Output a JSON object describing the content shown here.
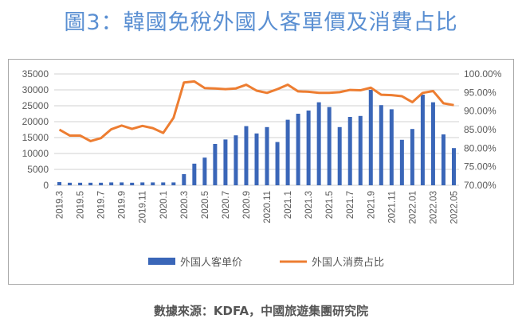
{
  "title": "圖3：韓國免稅外國人客單價及消費占比",
  "source": "數據來源：KDFA，中國旅遊集團研究院",
  "chart_data": {
    "type": "bar+line",
    "title": "",
    "categories": [
      "2019.3",
      "2019.4",
      "2019.5",
      "2019.6",
      "2019.7",
      "2019.8",
      "2019.9",
      "2019.10",
      "2019.11",
      "2019.12",
      "2020.1",
      "2020.2",
      "2020.3",
      "2020.4",
      "2020.5",
      "2020.6",
      "2020.7",
      "2020.8",
      "2020.9",
      "2020.10",
      "2020.11",
      "2020.12",
      "2021.1",
      "2021.2",
      "2021.3",
      "2021.4",
      "2021.5",
      "2021.6",
      "2021.7",
      "2021.8",
      "2021.9",
      "2021.10",
      "2021.11",
      "2021.12",
      "2022.01",
      "2022.02",
      "2022.03",
      "2022.04",
      "2022.05"
    ],
    "tick_labels": [
      "2019.3",
      "2019.5",
      "2019.7",
      "2019.9",
      "2019.11",
      "2020.1",
      "2020.3",
      "2020.5",
      "2020.7",
      "2020.9",
      "2020.11",
      "2021.1",
      "2021.3",
      "2021.5",
      "2021.7",
      "2021.9",
      "2021.11",
      "2022.01",
      "2022.03",
      "2022.05"
    ],
    "series": [
      {
        "name": "外国人客单价",
        "type": "bar",
        "axis": "left",
        "color": "#3a66b8",
        "values": [
          1000,
          800,
          800,
          800,
          800,
          900,
          900,
          800,
          900,
          900,
          900,
          900,
          3500,
          6800,
          8700,
          13000,
          14400,
          15700,
          18600,
          16300,
          18300,
          13600,
          20600,
          22500,
          23500,
          26100,
          24600,
          18300,
          21500,
          21800,
          30000,
          25200,
          23900,
          14300,
          17700,
          28500,
          26100,
          16000,
          11700
        ]
      },
      {
        "name": "外国人消费占比",
        "type": "line",
        "axis": "right",
        "color": "#ed7d31",
        "values": [
          85.0,
          83.4,
          83.4,
          81.9,
          82.7,
          85.1,
          86.1,
          85.2,
          86.0,
          85.4,
          84.1,
          88.2,
          97.7,
          98.0,
          96.2,
          96.1,
          95.9,
          96.1,
          97.1,
          95.5,
          94.9,
          95.9,
          97.1,
          95.3,
          95.2,
          94.9,
          94.9,
          95.1,
          95.7,
          95.6,
          96.3,
          94.4,
          94.3,
          94.0,
          92.4,
          94.9,
          95.4,
          92.1,
          91.6
        ]
      }
    ],
    "y_left": {
      "range": [
        0,
        35000
      ],
      "ticks": [
        "0",
        "5000",
        "10000",
        "15000",
        "20000",
        "25000",
        "30000",
        "35000"
      ]
    },
    "y_right": {
      "range": [
        70,
        100
      ],
      "unit": "%",
      "ticks": [
        "70.00%",
        "75.00%",
        "80.00%",
        "85.00%",
        "90.00%",
        "95.00%",
        "100.00%"
      ]
    },
    "grid": true,
    "legend": "bottom"
  }
}
